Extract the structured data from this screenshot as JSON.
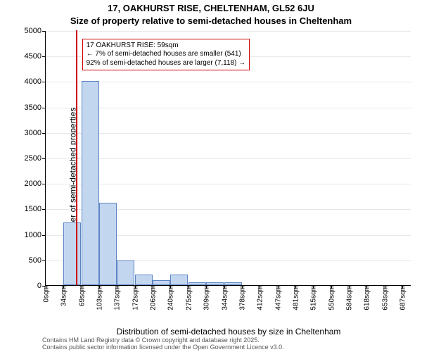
{
  "title": "17, OAKHURST RISE, CHELTENHAM, GL52 6JU",
  "subtitle": "Size of property relative to semi-detached houses in Cheltenham",
  "ylabel": "Number of semi-detached properties",
  "xlabel": "Distribution of semi-detached houses by size in Cheltenham",
  "attribution_line1": "Contains HM Land Registry data © Crown copyright and database right 2025.",
  "attribution_line2": "Contains public sector information licensed under the Open Government Licence v3.0.",
  "chart": {
    "type": "histogram",
    "ylim": [
      0,
      5000
    ],
    "ytick_step": 500,
    "yticks": [
      0,
      500,
      1000,
      1500,
      2000,
      2500,
      3000,
      3500,
      4000,
      4500,
      5000
    ],
    "x_domain": [
      0,
      705
    ],
    "xtick_positions": [
      0,
      34,
      69,
      103,
      137,
      172,
      206,
      240,
      275,
      309,
      344,
      378,
      412,
      447,
      481,
      515,
      550,
      584,
      618,
      653,
      687
    ],
    "xtick_labels": [
      "0sqm",
      "34sqm",
      "69sqm",
      "103sqm",
      "137sqm",
      "172sqm",
      "206sqm",
      "240sqm",
      "275sqm",
      "309sqm",
      "344sqm",
      "378sqm",
      "412sqm",
      "447sqm",
      "481sqm",
      "515sqm",
      "550sqm",
      "584sqm",
      "618sqm",
      "653sqm",
      "687sqm"
    ],
    "bin_width": 34.35,
    "bar_color": "#c3d6f0",
    "bar_border": "#5b84c4",
    "grid_color": "rgba(0,0,0,0.09)",
    "background": "#ffffff",
    "bars": [
      {
        "x": 34,
        "count": 1230
      },
      {
        "x": 69,
        "count": 4000
      },
      {
        "x": 103,
        "count": 1610
      },
      {
        "x": 137,
        "count": 480
      },
      {
        "x": 172,
        "count": 210
      },
      {
        "x": 206,
        "count": 100
      },
      {
        "x": 240,
        "count": 210
      },
      {
        "x": 275,
        "count": 60
      },
      {
        "x": 309,
        "count": 60
      },
      {
        "x": 344,
        "count": 60
      }
    ],
    "marker": {
      "x": 59,
      "color": "#cc0000"
    },
    "annotation": {
      "x_left_sqm": 70,
      "y_top_value": 4850,
      "border_color": "#cc0000",
      "background": "#ffffff",
      "line1": "17 OAKHURST RISE: 59sqm",
      "line2": "← 7% of semi-detached houses are smaller (541)",
      "line3": "92% of semi-detached houses are larger (7,118) →"
    }
  }
}
